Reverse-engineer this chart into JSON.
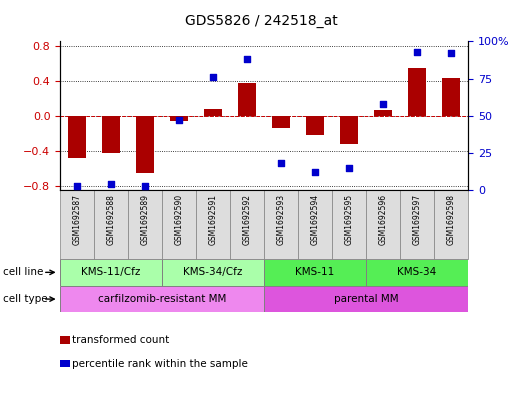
{
  "title": "GDS5826 / 242518_at",
  "samples": [
    "GSM1692587",
    "GSM1692588",
    "GSM1692589",
    "GSM1692590",
    "GSM1692591",
    "GSM1692592",
    "GSM1692593",
    "GSM1692594",
    "GSM1692595",
    "GSM1692596",
    "GSM1692597",
    "GSM1692598"
  ],
  "transformed_count": [
    -0.48,
    -0.42,
    -0.65,
    -0.06,
    0.08,
    0.37,
    -0.14,
    -0.22,
    -0.32,
    0.06,
    0.54,
    0.43
  ],
  "percentile_rank": [
    3,
    4,
    3,
    47,
    76,
    88,
    18,
    12,
    15,
    58,
    93,
    92
  ],
  "ylim_left": [
    -0.85,
    0.85
  ],
  "ylim_right": [
    0,
    100
  ],
  "yticks_left": [
    -0.8,
    -0.4,
    0.0,
    0.4,
    0.8
  ],
  "yticks_right": [
    0,
    25,
    50,
    75,
    100
  ],
  "bar_color": "#aa0000",
  "dot_color": "#0000cc",
  "cell_line_groups": [
    {
      "label": "KMS-11/Cfz",
      "start": 0,
      "end": 3,
      "color": "#aaffaa"
    },
    {
      "label": "KMS-34/Cfz",
      "start": 3,
      "end": 6,
      "color": "#aaffaa"
    },
    {
      "label": "KMS-11",
      "start": 6,
      "end": 9,
      "color": "#55ee55"
    },
    {
      "label": "KMS-34",
      "start": 9,
      "end": 12,
      "color": "#55ee55"
    }
  ],
  "cell_type_groups": [
    {
      "label": "carfilzomib-resistant MM",
      "start": 0,
      "end": 6,
      "color": "#ee88ee"
    },
    {
      "label": "parental MM",
      "start": 6,
      "end": 12,
      "color": "#dd55dd"
    }
  ],
  "legend_bar_label": "transformed count",
  "legend_dot_label": "percentile rank within the sample",
  "cell_line_label": "cell line",
  "cell_type_label": "cell type",
  "sample_box_color": "#dddddd",
  "title_fontsize": 10
}
